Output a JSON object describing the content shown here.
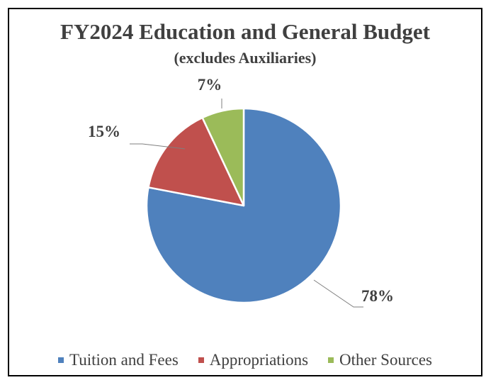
{
  "chart_data": {
    "type": "pie",
    "title": "FY2024 Education and General Budget",
    "subtitle": "(excludes Auxiliaries)",
    "categories": [
      "Tuition and Fees",
      "Appropriations",
      "Other Sources"
    ],
    "values": [
      78,
      15,
      7
    ],
    "data_labels": [
      "78%",
      "15%",
      "7%"
    ],
    "colors": [
      "#4F81BD",
      "#C0504D",
      "#9BBB59"
    ],
    "legend_position": "bottom",
    "start_angle": "top, clockwise"
  }
}
